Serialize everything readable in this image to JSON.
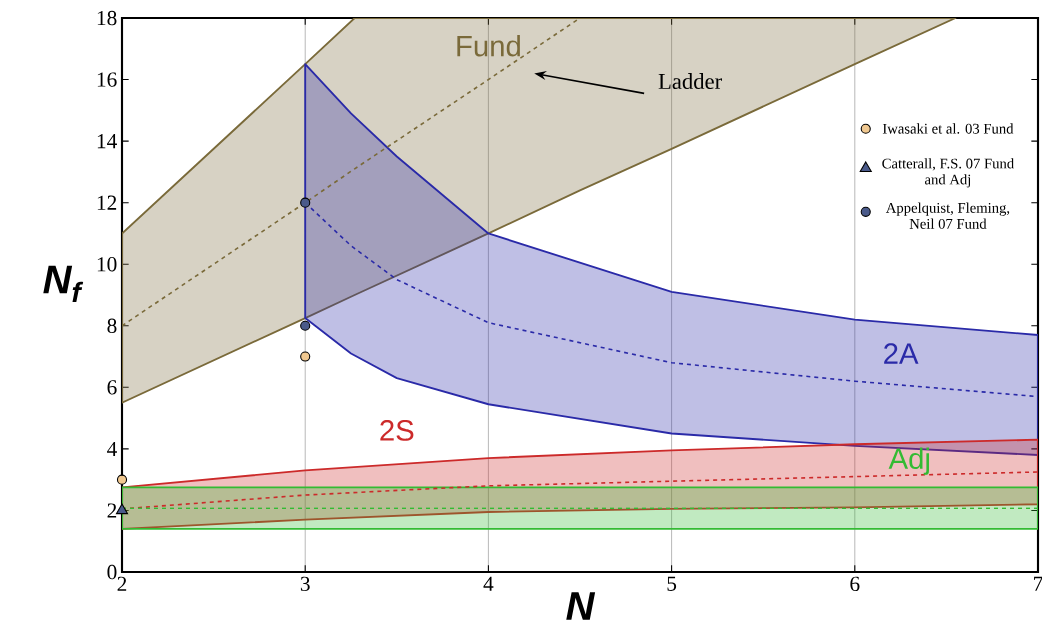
{
  "chart_data": {
    "type": "line",
    "xlabel": "N",
    "ylabel": "N$_{f}$",
    "xlim": [
      2,
      7
    ],
    "ylim": [
      0,
      18
    ],
    "xticks": [
      2,
      3,
      4,
      5,
      6,
      7
    ],
    "yticks": [
      0,
      2,
      4,
      6,
      8,
      10,
      12,
      14,
      16,
      18
    ],
    "grid": "x",
    "legend": "right",
    "annotations": [
      "Ladder"
    ],
    "series": [
      {
        "name": "Fund",
        "color": "#7a6a3a",
        "line_style": "dashed",
        "x": [
          2,
          3,
          3.27,
          4,
          4.5,
          5,
          6,
          6.55
        ],
        "values": [
          8,
          12,
          13.1,
          16,
          18,
          null,
          null,
          null
        ],
        "lower": [
          5.5,
          8.25,
          9,
          11,
          12.4,
          13.75,
          16.5,
          18
        ],
        "upper": [
          11,
          16.5,
          18,
          18,
          18,
          18,
          18,
          18
        ]
      },
      {
        "name": "2A",
        "color": "#2a2aa8",
        "line_style": "dashed",
        "x": [
          3,
          3.25,
          3.5,
          4,
          5,
          6,
          7
        ],
        "values": [
          12,
          10.6,
          9.5,
          8.1,
          6.8,
          6.2,
          5.7
        ],
        "lower": [
          8.25,
          7.1,
          6.3,
          5.45,
          4.5,
          4.1,
          3.8
        ],
        "upper": [
          16.5,
          14.9,
          13.5,
          11,
          9.1,
          8.2,
          7.7
        ]
      },
      {
        "name": "2S",
        "color": "#cc2a2a",
        "line_style": "dashed",
        "x": [
          2,
          3,
          4,
          5,
          6,
          7
        ],
        "values": [
          2.05,
          2.5,
          2.8,
          2.95,
          3.1,
          3.25
        ],
        "lower": [
          1.4,
          1.7,
          1.95,
          2.05,
          2.1,
          2.2
        ],
        "upper": [
          2.75,
          3.3,
          3.7,
          3.95,
          4.15,
          4.3
        ]
      },
      {
        "name": "Adj",
        "color": "#33bb33",
        "line_style": "dashed",
        "x": [
          2,
          7
        ],
        "values": [
          2.07,
          2.07
        ],
        "lower": [
          1.4,
          1.4
        ],
        "upper": [
          2.75,
          2.75
        ]
      },
      {
        "name": "Iwasaki et al. 03 Fund",
        "type": "scatter",
        "marker": "circle",
        "color": "#f0c890",
        "x": [
          2,
          3
        ],
        "values": [
          3,
          7
        ]
      },
      {
        "name": "Catterall, F.S. 07 Fund and Adj",
        "type": "scatter",
        "marker": "triangle",
        "color": "#4a5a8a",
        "x": [
          2
        ],
        "values": [
          2
        ]
      },
      {
        "name": "Appelquist, Fleming, Neil 07 Fund",
        "type": "scatter",
        "marker": "circle",
        "color": "#4a5a8a",
        "x": [
          3,
          3
        ],
        "values": [
          12,
          8
        ]
      }
    ]
  }
}
